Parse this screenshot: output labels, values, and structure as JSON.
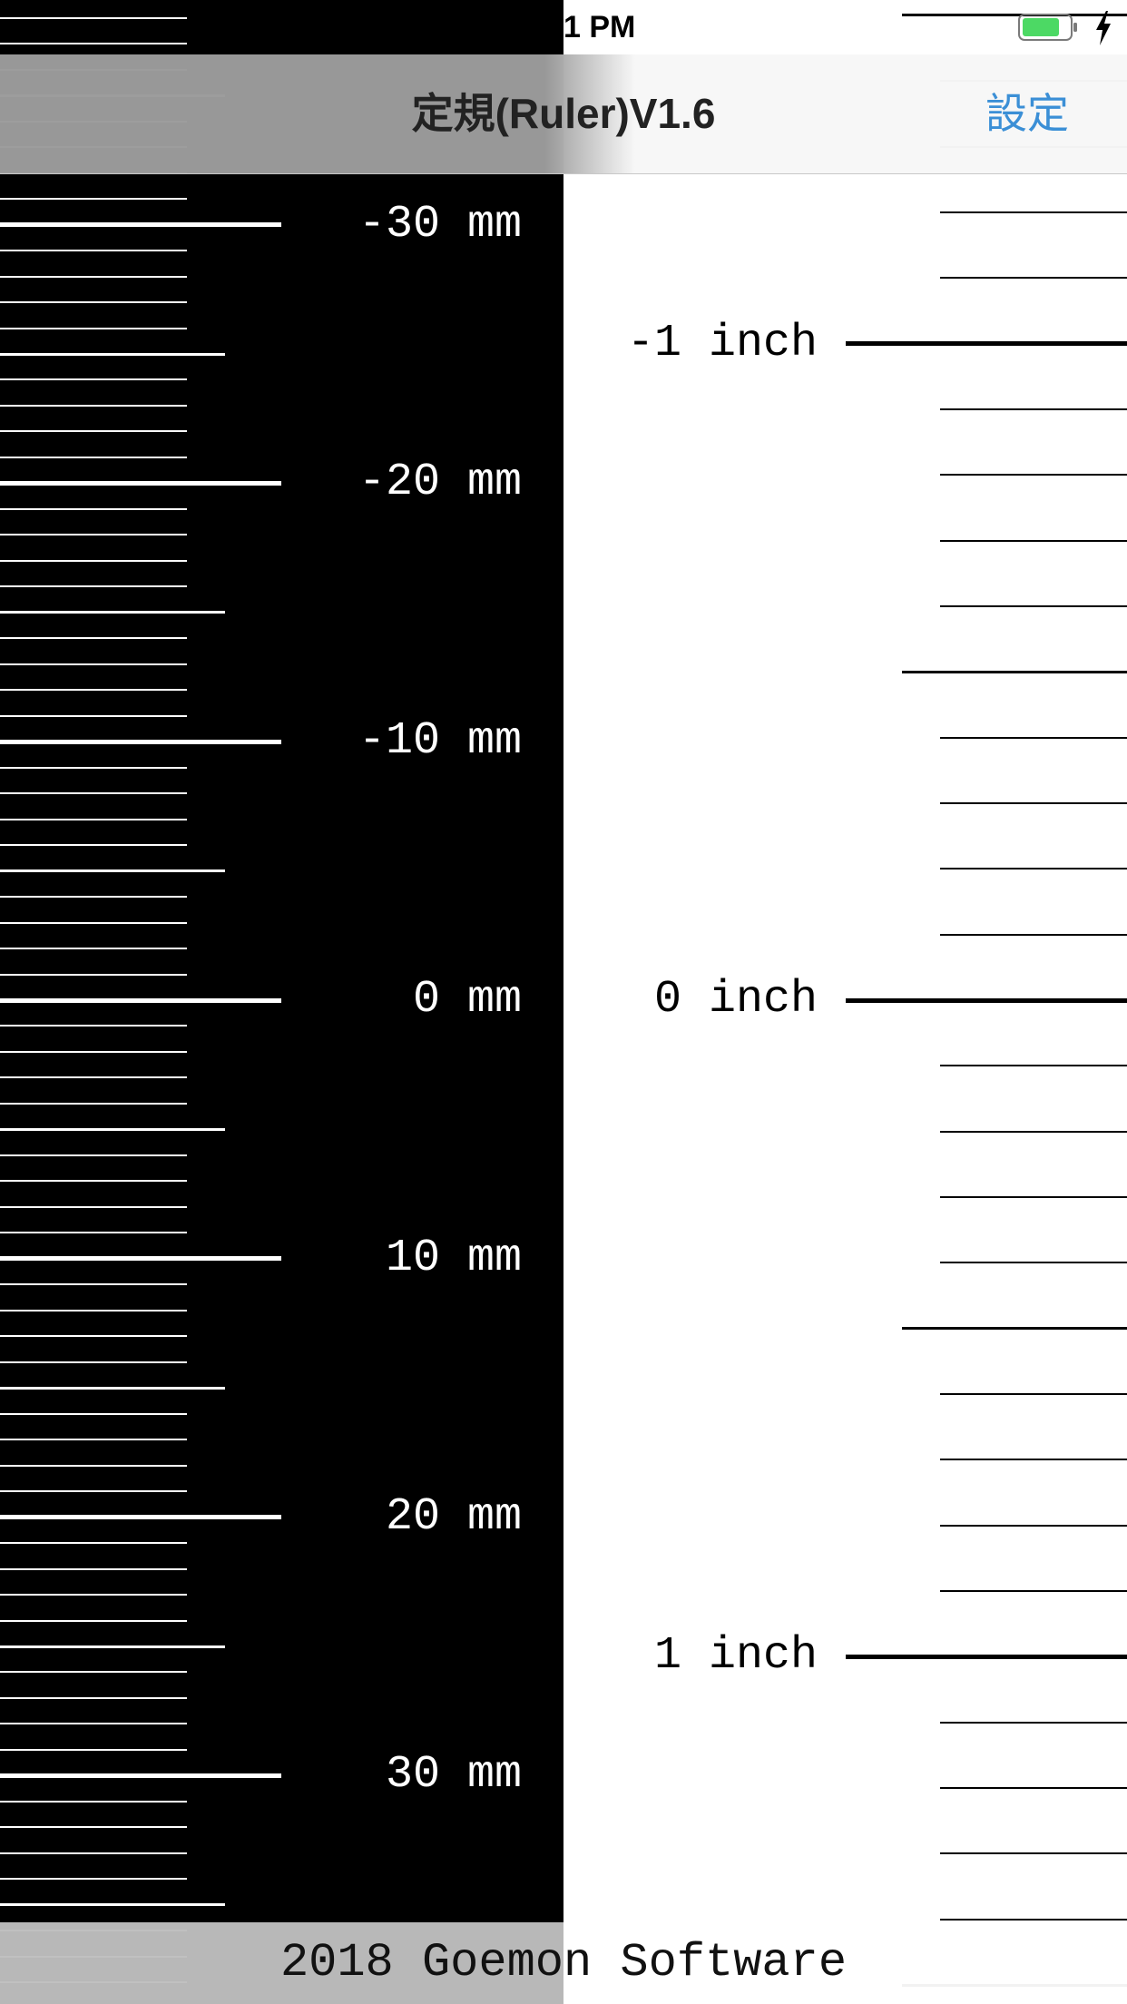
{
  "status_bar": {
    "time": "1 PM",
    "battery_icon": "battery-icon",
    "charging_icon": "charging-bolt-icon",
    "battery_color": "#4cd964"
  },
  "nav": {
    "title": "定規(Ruler)V1.6",
    "settings_label": "設定",
    "settings_color": "#3b8fd6"
  },
  "mm_ruler": {
    "unit": "mm",
    "labels": [
      "-30 mm",
      "-20 mm",
      "-10 mm",
      "0 mm",
      "10 mm",
      "20 mm",
      "30 mm"
    ],
    "label_values": [
      -30,
      -20,
      -10,
      0,
      10,
      20,
      30
    ],
    "background": "#000000",
    "tick_color": "#ffffff"
  },
  "inch_ruler": {
    "unit": "inch",
    "labels": [
      "-1 inch",
      "0 inch",
      "1 inch"
    ],
    "label_values": [
      -1,
      0,
      1
    ],
    "subdivisions_per_inch": 10,
    "background": "#ffffff",
    "tick_color": "#000000"
  },
  "footer": {
    "text": "2018 Goemon Software"
  }
}
